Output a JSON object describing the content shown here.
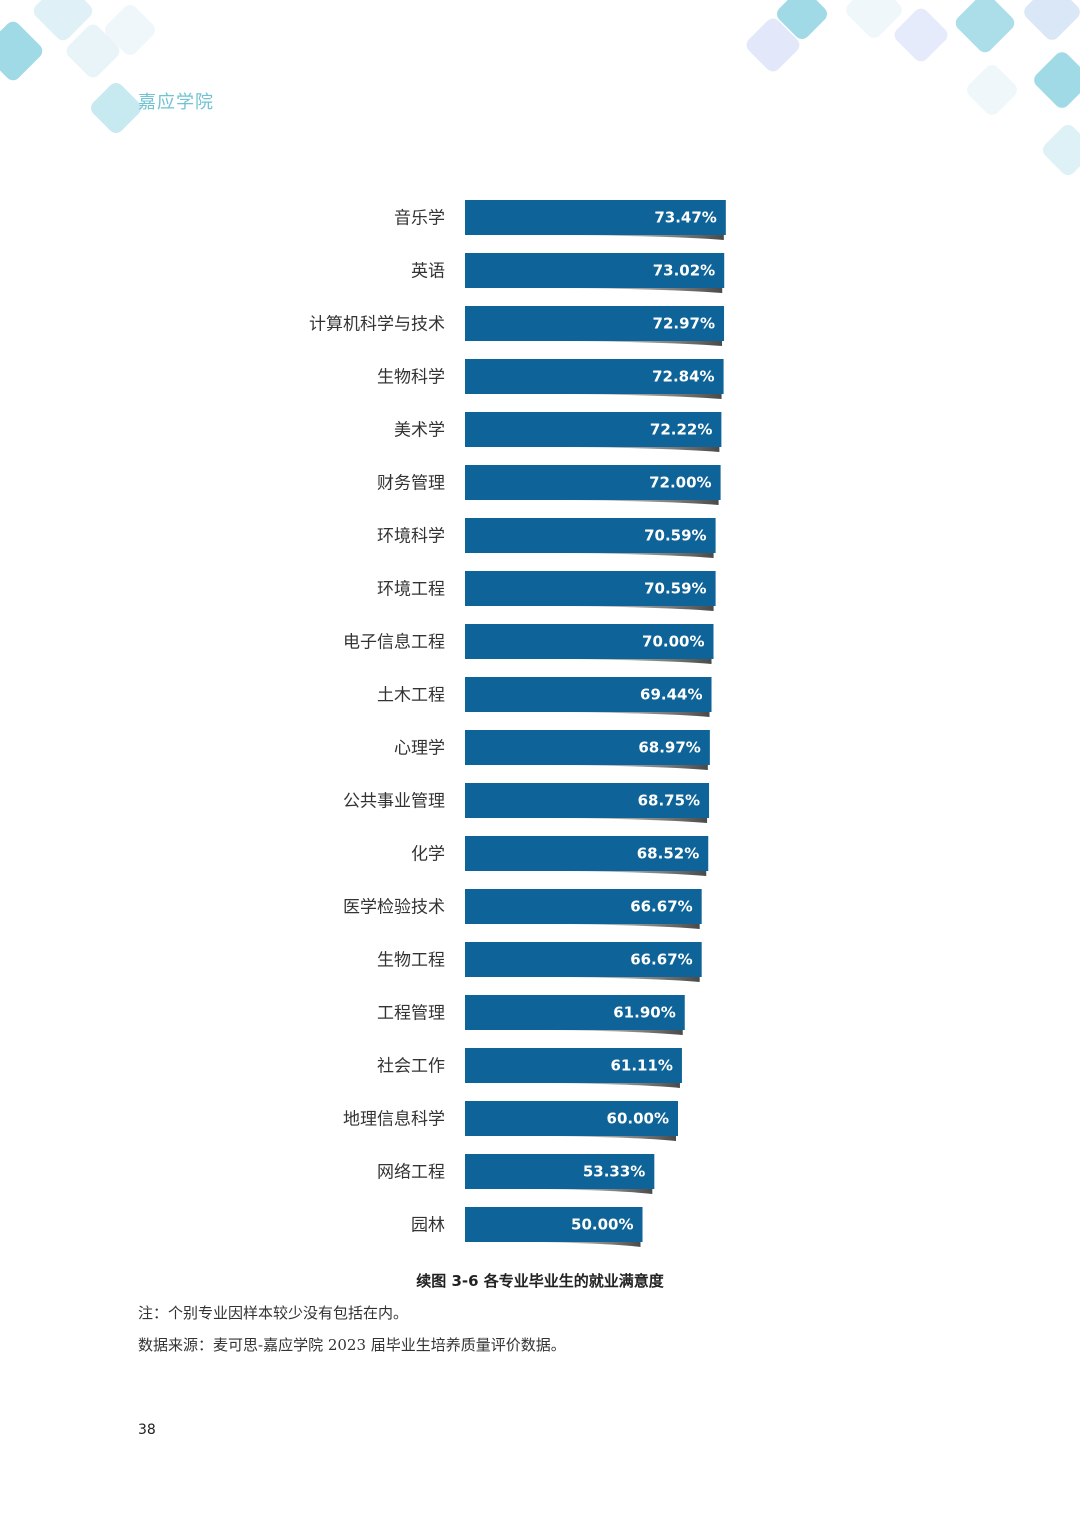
{
  "header": {
    "school_name": "嘉应学院"
  },
  "colors": {
    "bar": "#0e6398",
    "shadow": "#2a2a2a",
    "accent": "#6fc3d3"
  },
  "chart_data": {
    "type": "bar",
    "orientation": "horizontal",
    "title": "续图 3-6 各专业毕业生的就业满意度",
    "categories": [
      "音乐学",
      "英语",
      "计算机科学与技术",
      "生物科学",
      "美术学",
      "财务管理",
      "环境科学",
      "环境工程",
      "电子信息工程",
      "土木工程",
      "心理学",
      "公共事业管理",
      "化学",
      "医学检验技术",
      "生物工程",
      "工程管理",
      "社会工作",
      "地理信息科学",
      "网络工程",
      "园林"
    ],
    "values": [
      73.47,
      73.02,
      72.97,
      72.84,
      72.22,
      72.0,
      70.59,
      70.59,
      70.0,
      69.44,
      68.97,
      68.75,
      68.52,
      66.67,
      66.67,
      61.9,
      61.11,
      60.0,
      53.33,
      50.0
    ],
    "value_labels": [
      "73.47%",
      "73.02%",
      "72.97%",
      "72.84%",
      "72.22%",
      "72.00%",
      "70.59%",
      "70.59%",
      "70.00%",
      "69.44%",
      "68.97%",
      "68.75%",
      "68.52%",
      "66.67%",
      "66.67%",
      "61.90%",
      "61.11%",
      "60.00%",
      "53.33%",
      "50.00%"
    ],
    "unit": "%",
    "grid": false,
    "legend": "none"
  },
  "notes": {
    "note": "注：个别专业因样本较少没有包括在内。",
    "source": "数据来源：麦可思-嘉应学院 2023 届毕业生培养质量评价数据。"
  },
  "footer": {
    "page_number": "38"
  }
}
